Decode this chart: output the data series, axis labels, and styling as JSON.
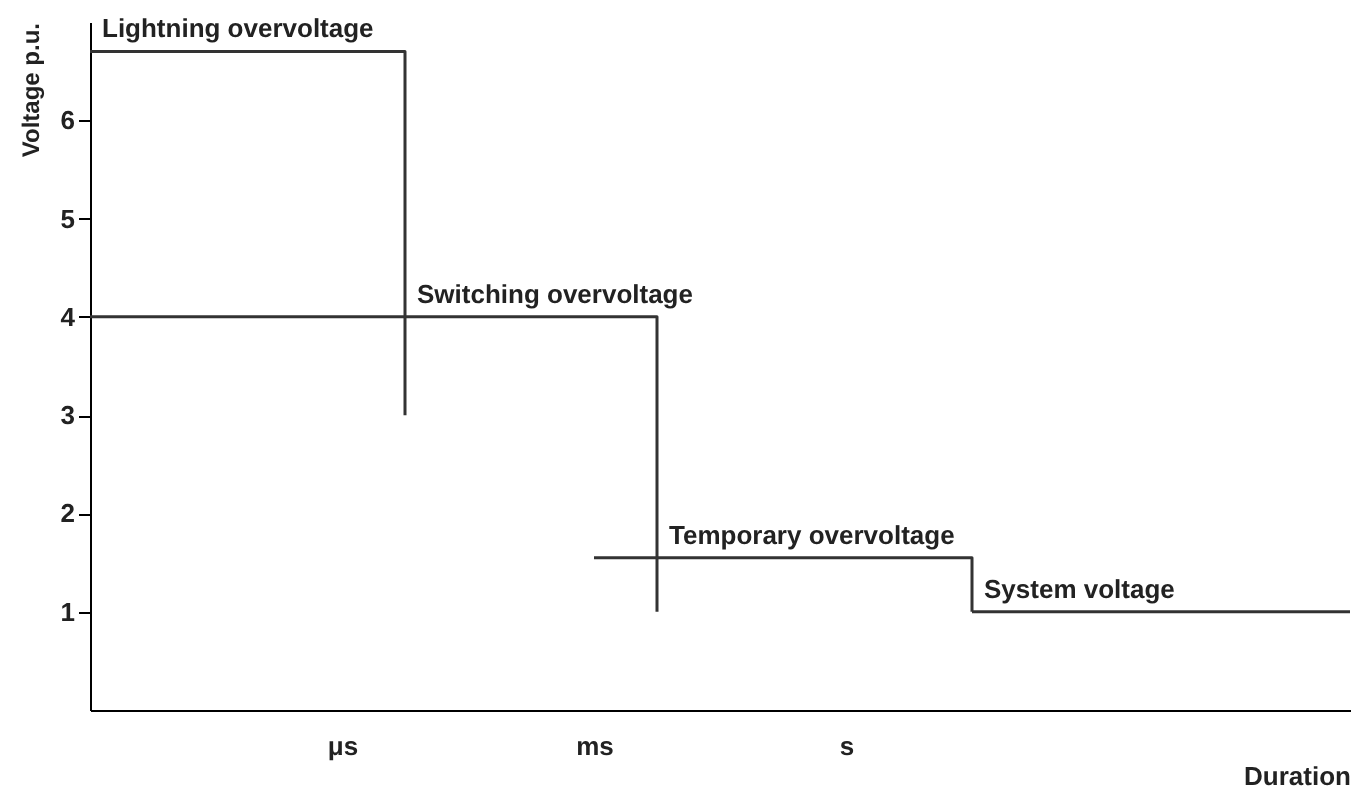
{
  "chart_data": {
    "type": "step",
    "xlabel": "Duration",
    "ylabel": "Voltage p.u.",
    "ylim": [
      0,
      7
    ],
    "yticks": [
      1,
      2,
      3,
      4,
      5,
      6
    ],
    "grid": false,
    "categories": [
      null,
      null,
      null,
      null,
      "μs",
      null,
      null,
      null,
      "ms",
      null,
      null,
      null,
      "s",
      null,
      null,
      null,
      null,
      null,
      null,
      null,
      null
    ],
    "series": [
      {
        "name": "Lightning overvoltage",
        "color": "#333333",
        "values": [
          6.7,
          6.7,
          6.7,
          6.7,
          6.7,
          3.0,
          null,
          null,
          null,
          null,
          null,
          null,
          null,
          null,
          null,
          null,
          null,
          null,
          null,
          null,
          null
        ]
      },
      {
        "name": "Switching overvoltage",
        "color": "#333333",
        "values": [
          4,
          4,
          4,
          4,
          4,
          4,
          4,
          4,
          4,
          1,
          null,
          null,
          null,
          null,
          null,
          null,
          null,
          null,
          null,
          null,
          null
        ]
      },
      {
        "name": "Temporary overvoltage",
        "color": "#333333",
        "values": [
          null,
          null,
          null,
          null,
          null,
          null,
          null,
          null,
          1.55,
          1.55,
          1.55,
          1.55,
          1.55,
          1.55,
          1.0,
          null,
          null,
          null,
          null,
          null,
          null
        ]
      },
      {
        "name": "System voltage",
        "color": "#333333",
        "values": [
          null,
          null,
          null,
          null,
          null,
          null,
          null,
          null,
          null,
          null,
          null,
          null,
          null,
          null,
          1,
          1,
          1,
          1,
          1,
          1,
          1
        ]
      }
    ]
  }
}
